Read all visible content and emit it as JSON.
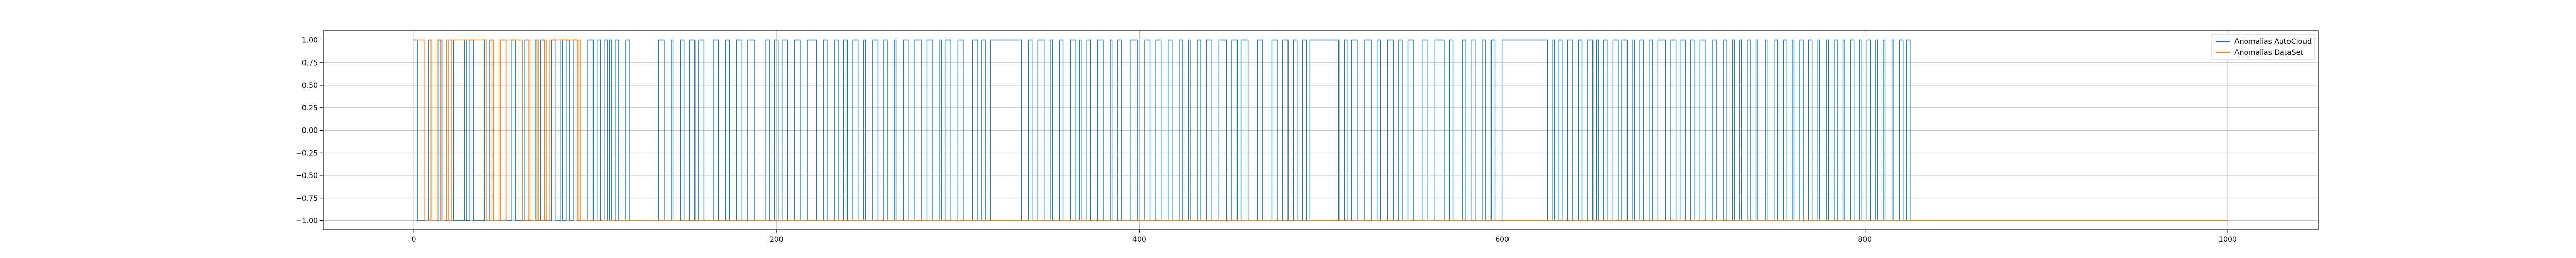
{
  "chart_data": {
    "type": "line",
    "title": "",
    "xlabel": "",
    "ylabel": "",
    "xlim": [
      -50,
      1050
    ],
    "ylim": [
      -1.1,
      1.1
    ],
    "grid": true,
    "legend_position": "top-right",
    "xticks": [
      0,
      200,
      400,
      600,
      800,
      1000
    ],
    "xtick_labels": [
      "0",
      "200",
      "400",
      "600",
      "800",
      "1000"
    ],
    "yticks": [
      -1.0,
      -0.75,
      -0.5,
      -0.25,
      0.0,
      0.25,
      0.5,
      0.75,
      1.0
    ],
    "ytick_labels": [
      "−1.00",
      "−0.75",
      "−0.50",
      "−0.25",
      "0.00",
      "0.25",
      "0.50",
      "0.75",
      "1.00"
    ],
    "series": [
      {
        "name": "Anomalias AutoCloud",
        "color": "#1f77b4",
        "type": "step",
        "x_range": [
          0,
          825
        ],
        "high_intervals": [
          [
            0,
            2
          ],
          [
            8,
            10
          ],
          [
            14,
            16
          ],
          [
            19,
            22
          ],
          [
            28,
            29
          ],
          [
            31,
            33
          ],
          [
            39,
            40
          ],
          [
            42,
            44
          ],
          [
            48,
            51
          ],
          [
            54,
            56
          ],
          [
            61,
            63
          ],
          [
            67,
            68
          ],
          [
            70,
            72
          ],
          [
            76,
            78
          ],
          [
            81,
            82
          ],
          [
            84,
            86
          ],
          [
            88,
            90
          ],
          [
            96,
            99
          ],
          [
            101,
            103
          ],
          [
            105,
            107
          ],
          [
            108,
            109
          ],
          [
            111,
            113
          ],
          [
            117,
            119
          ],
          [
            135,
            138
          ],
          [
            142,
            143
          ],
          [
            147,
            149
          ],
          [
            152,
            155
          ],
          [
            157,
            160
          ],
          [
            165,
            168
          ],
          [
            172,
            174
          ],
          [
            178,
            181
          ],
          [
            184,
            188
          ],
          [
            194,
            196
          ],
          [
            199,
            201
          ],
          [
            203,
            206
          ],
          [
            210,
            213
          ],
          [
            217,
            222
          ],
          [
            226,
            228
          ],
          [
            232,
            234
          ],
          [
            237,
            239
          ],
          [
            242,
            245
          ],
          [
            248,
            249
          ],
          [
            253,
            256
          ],
          [
            259,
            261
          ],
          [
            265,
            266
          ],
          [
            270,
            273
          ],
          [
            276,
            280
          ],
          [
            283,
            286
          ],
          [
            290,
            291
          ],
          [
            293,
            296
          ],
          [
            300,
            303
          ],
          [
            308,
            311
          ],
          [
            313,
            315
          ],
          [
            318,
            335
          ],
          [
            339,
            341
          ],
          [
            344,
            348
          ],
          [
            351,
            352
          ],
          [
            356,
            358
          ],
          [
            362,
            365
          ],
          [
            367,
            368
          ],
          [
            371,
            373
          ],
          [
            377,
            380
          ],
          [
            384,
            385
          ],
          [
            388,
            390
          ],
          [
            395,
            399
          ],
          [
            403,
            406
          ],
          [
            409,
            412
          ],
          [
            416,
            418
          ],
          [
            422,
            424
          ],
          [
            427,
            428
          ],
          [
            432,
            434
          ],
          [
            437,
            440
          ],
          [
            444,
            448
          ],
          [
            451,
            454
          ],
          [
            456,
            460
          ],
          [
            465,
            468
          ],
          [
            473,
            476
          ],
          [
            479,
            482
          ],
          [
            485,
            487
          ],
          [
            490,
            492
          ],
          [
            494,
            510
          ],
          [
            513,
            515
          ],
          [
            517,
            520
          ],
          [
            524,
            528
          ],
          [
            531,
            533
          ],
          [
            537,
            540
          ],
          [
            543,
            545
          ],
          [
            548,
            551
          ],
          [
            556,
            559
          ],
          [
            563,
            568
          ],
          [
            571,
            573
          ],
          [
            578,
            580
          ],
          [
            583,
            585
          ],
          [
            589,
            591
          ],
          [
            594,
            596
          ],
          [
            600,
            625
          ],
          [
            628,
            629
          ],
          [
            631,
            633
          ],
          [
            636,
            639
          ],
          [
            642,
            644
          ],
          [
            647,
            650
          ],
          [
            652,
            653
          ],
          [
            656,
            658
          ],
          [
            661,
            664
          ],
          [
            666,
            669
          ],
          [
            672,
            673
          ],
          [
            676,
            678
          ],
          [
            681,
            683
          ],
          [
            686,
            690
          ],
          [
            693,
            696
          ],
          [
            698,
            701
          ],
          [
            704,
            706
          ],
          [
            709,
            712
          ],
          [
            716,
            718
          ],
          [
            722,
            724
          ],
          [
            727,
            728
          ],
          [
            731,
            732
          ],
          [
            735,
            737
          ],
          [
            740,
            741
          ],
          [
            745,
            746
          ],
          [
            750,
            752
          ],
          [
            755,
            757
          ],
          [
            760,
            761
          ],
          [
            764,
            766
          ],
          [
            769,
            771
          ],
          [
            774,
            775
          ],
          [
            779,
            780
          ],
          [
            783,
            785
          ],
          [
            788,
            789
          ],
          [
            792,
            794
          ],
          [
            797,
            798
          ],
          [
            801,
            803
          ],
          [
            806,
            807
          ],
          [
            810,
            811
          ],
          [
            815,
            816
          ],
          [
            819,
            821
          ],
          [
            823,
            825
          ]
        ]
      },
      {
        "name": "Anomalias DataSet",
        "color": "#ff7f0e",
        "type": "step",
        "x_range": [
          0,
          1000
        ],
        "high_intervals": [
          [
            0,
            6
          ],
          [
            9,
            10
          ],
          [
            13,
            15
          ],
          [
            18,
            19
          ],
          [
            21,
            40
          ],
          [
            43,
            44
          ],
          [
            47,
            48
          ],
          [
            51,
            60
          ],
          [
            63,
            64
          ],
          [
            68,
            69
          ],
          [
            72,
            73
          ],
          [
            75,
            90
          ],
          [
            91,
            92
          ]
        ]
      }
    ]
  }
}
